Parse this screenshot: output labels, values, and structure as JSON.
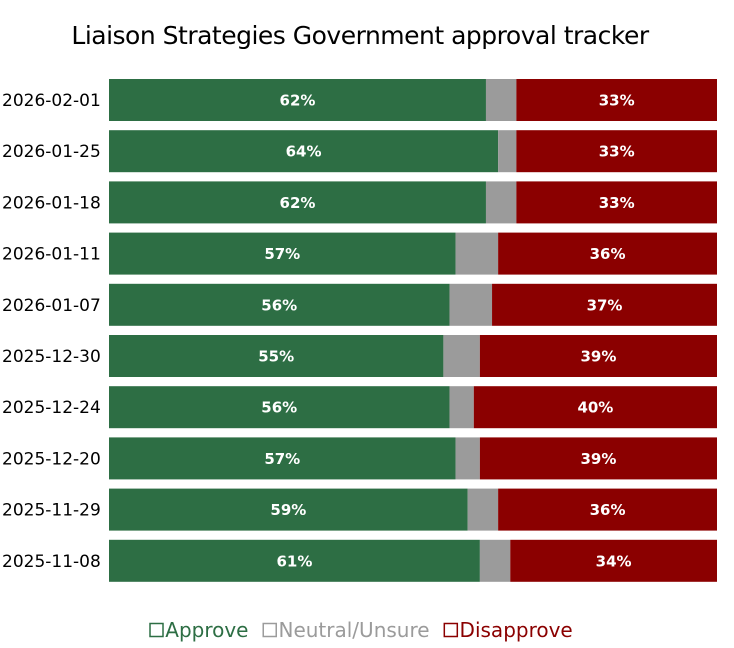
{
  "chart_data": {
    "type": "bar",
    "orientation": "horizontal",
    "stacked": true,
    "title": "Liaison Strategies Government approval tracker",
    "categories": [
      "2026-02-01",
      "2026-01-25",
      "2026-01-18",
      "2026-01-11",
      "2026-01-07",
      "2025-12-30",
      "2025-12-24",
      "2025-12-20",
      "2025-11-29",
      "2025-11-08"
    ],
    "series": [
      {
        "name": "Approve",
        "color": "#2d6e44",
        "values": [
          62,
          64,
          62,
          57,
          56,
          55,
          56,
          57,
          59,
          61
        ],
        "labels": [
          "62%",
          "64%",
          "62%",
          "57%",
          "56%",
          "55%",
          "56%",
          "57%",
          "59%",
          "61%"
        ]
      },
      {
        "name": "Neutral/Unsure",
        "color": "#9b9b9b",
        "values": [
          5,
          3,
          5,
          7,
          7,
          6,
          4,
          4,
          5,
          5
        ]
      },
      {
        "name": "Disapprove",
        "color": "#8b0000",
        "values": [
          33,
          33,
          33,
          36,
          37,
          39,
          40,
          39,
          36,
          34
        ],
        "labels": [
          "33%",
          "33%",
          "33%",
          "36%",
          "37%",
          "39%",
          "40%",
          "39%",
          "36%",
          "34%"
        ]
      }
    ],
    "xlim": [
      0,
      100
    ],
    "grid": false,
    "legend_position": "bottom"
  }
}
